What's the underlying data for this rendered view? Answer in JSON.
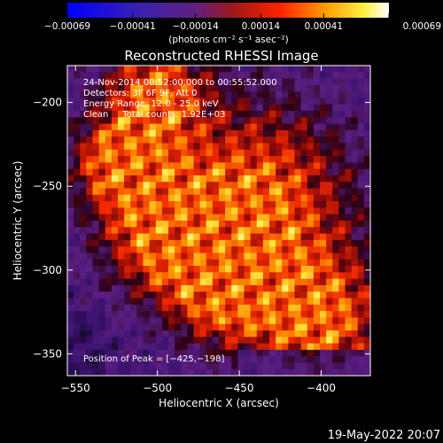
{
  "chart_data": {
    "type": "heatmap",
    "title": "Reconstructed RHESSI Image",
    "xlabel": "Heliocentric X (arcsec)",
    "ylabel": "Heliocentric Y (arcsec)",
    "xlim": [
      -555,
      -370
    ],
    "ylim": [
      -363,
      -178
    ],
    "xticks": [
      -550,
      -500,
      -450,
      -400
    ],
    "xtick_labels": [
      "−550",
      "−500",
      "−450",
      "−400"
    ],
    "yticks": [
      -200,
      -250,
      -300,
      -350
    ],
    "ytick_labels": [
      "−200",
      "−250",
      "−300",
      "−350"
    ],
    "colorbar": {
      "min": -0.00069,
      "max": 0.00069,
      "ticks": [
        -0.00069,
        -0.00041,
        -0.00014,
        0.00014,
        0.00041,
        0.00069
      ],
      "tick_labels": [
        "−0.00069",
        "−0.00041",
        "−0.00014",
        "0.00014",
        "0.00041",
        "0.00069"
      ],
      "unit_label": "(photons cm⁻² s⁻¹ asec⁻²)",
      "colormap": "blue-purple-red-orange-yellow-white"
    },
    "annotations": [
      "24-Nov-2014 00:52:00.000 to 00:55:52.000",
      "Detectors: 3F 6F 9F, Att 0",
      "Energy Range: 12.0 - 25.0 keV",
      "Clean     Total counts: 1.92E+03"
    ],
    "peak_label": "Position of Peak = [−425,−198]",
    "peak": {
      "x": -425,
      "y": -198
    },
    "grid": false,
    "legend": "none"
  },
  "footer": {
    "date_stamp": "19-May-2022 20:07"
  }
}
